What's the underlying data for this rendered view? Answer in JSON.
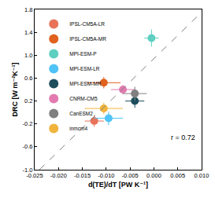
{
  "chart_data": {
    "type": "scatter",
    "x_label": "d(TE)/dT [PW K⁻¹]",
    "y_label": "DRC [W m⁻²K⁻¹]",
    "xlim": [
      -0.025,
      0.01
    ],
    "ylim": [
      -1.0,
      1.8
    ],
    "xticks": [
      {
        "value": -0.025,
        "label": "-0.025"
      },
      {
        "value": -0.02,
        "label": "-0.020"
      },
      {
        "value": -0.015,
        "label": "-0.015"
      },
      {
        "value": -0.01,
        "label": "-0.010"
      },
      {
        "value": -0.005,
        "label": "-0.005"
      },
      {
        "value": 0,
        "label": "0.000"
      },
      {
        "value": 0.005,
        "label": "0.005"
      },
      {
        "value": 0.01,
        "label": "0.010"
      }
    ],
    "yticks": [
      {
        "value": -1.0,
        "label": "-1.0"
      },
      -0.6,
      -0.2,
      0.2,
      0.6,
      {
        "value": 1.0,
        "label": "1.0"
      },
      1.4,
      1.8
    ],
    "legend": "top left",
    "annotations": [
      "r = 0.72"
    ],
    "series": [
      {
        "name": "IPSL-CM5A-LR",
        "color": "#e8735a",
        "marker": "circle",
        "x": [
          -0.0125
        ],
        "y": [
          -0.15
        ],
        "x_error": [
          0.002
        ],
        "y_error": [
          0.1
        ]
      },
      {
        "name": "IPSL-CM5A-MR",
        "color": "#e0621e",
        "marker": "circle",
        "x": [
          -0.0105
        ],
        "y": [
          0.52
        ],
        "x_error": [
          0.0035
        ],
        "y_error": [
          0.1
        ]
      },
      {
        "name": "MPI-ESM-P",
        "color": "#5ecfc0",
        "marker": "circle",
        "x": [
          -0.0005
        ],
        "y": [
          1.3
        ],
        "x_error": [
          0.0015
        ],
        "y_error": [
          0.15
        ]
      },
      {
        "name": "MPI-ESM-LR",
        "color": "#4fc3f7",
        "marker": "circle",
        "x": [
          -0.0095
        ],
        "y": [
          -0.1
        ],
        "x_error": [
          0.003
        ],
        "y_error": [
          0.12
        ]
      },
      {
        "name": "MPI-ESM-MR",
        "color": "#1e4d5c",
        "marker": "circle",
        "x": [
          -0.004
        ],
        "y": [
          0.2
        ],
        "x_error": [
          0.002
        ],
        "y_error": [
          0.12
        ]
      },
      {
        "name": "CNRM-CM5",
        "color": "#e27ab0",
        "marker": "circle",
        "x": [
          -0.0065
        ],
        "y": [
          0.4
        ],
        "x_error": [
          0.0025
        ],
        "y_error": [
          0.08
        ]
      },
      {
        "name": "CanESM2",
        "color": "#808080",
        "marker": "circle",
        "x": [
          -0.004
        ],
        "y": [
          0.33
        ],
        "x_error": [
          0.0025
        ],
        "y_error": [
          0.12
        ]
      },
      {
        "name": "inmcm4",
        "color": "#f0b43c",
        "marker": "circle",
        "x": [
          -0.0105
        ],
        "y": [
          0.07
        ],
        "x_error": [
          0.004
        ],
        "y_error": [
          0.1
        ]
      },
      {
        "type": "line",
        "color": "#808080",
        "line_style": "dashed",
        "x": [
          -0.024,
          0.01
        ],
        "y": [
          -1.0,
          1.75
        ]
      }
    ]
  }
}
